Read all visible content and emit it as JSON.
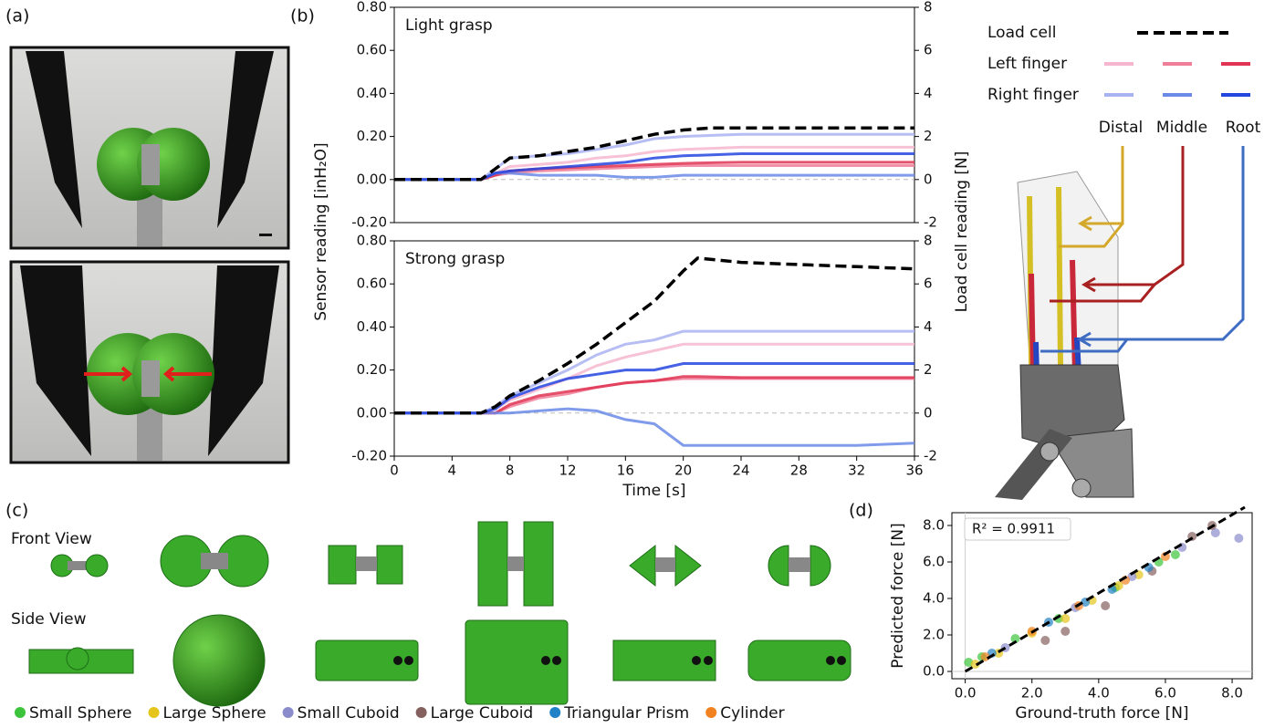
{
  "panel_labels": [
    "(a)",
    "(b)",
    "(c)",
    "(d)"
  ],
  "legend": {
    "rows": [
      "Load cell",
      "Left finger",
      "Right finger"
    ],
    "columns": [
      "Distal",
      "Middle",
      "Root"
    ]
  },
  "views": [
    "Front View",
    "Side View"
  ],
  "chart_data": [
    {
      "type": "line",
      "title": "Light grasp",
      "ylabel": "Sensor reading [inH₂O]",
      "y2label": "Load cell reading [N]",
      "x": [
        0,
        4,
        6,
        7,
        8,
        10,
        12,
        14,
        16,
        18,
        20,
        22,
        24,
        28,
        32,
        36
      ],
      "xlim": [
        0,
        36
      ],
      "ylim": [
        -0.2,
        0.8
      ],
      "yticks": [
        {
          "value": -0.2,
          "label": "-0.20"
        },
        {
          "value": 0,
          "label": "0.00"
        },
        {
          "value": 0.2,
          "label": "0.20"
        },
        {
          "value": 0.4,
          "label": "0.40"
        },
        {
          "value": 0.6,
          "label": "0.60"
        },
        {
          "value": 0.8,
          "label": "0.80"
        }
      ],
      "y2lim": [
        -2,
        8
      ],
      "y2ticks": [
        -2,
        0,
        2,
        4,
        6,
        8
      ],
      "series": [
        {
          "color": "#000000",
          "dash": true,
          "axis": "y2",
          "values": [
            0,
            0,
            0,
            0.5,
            1.0,
            1.1,
            1.3,
            1.5,
            1.8,
            2.1,
            2.3,
            2.4,
            2.4,
            2.4,
            2.4,
            2.4
          ]
        },
        {
          "color": "#f6b6cf",
          "values": [
            0,
            0,
            0,
            0.03,
            0.06,
            0.07,
            0.08,
            0.1,
            0.11,
            0.13,
            0.14,
            0.145,
            0.15,
            0.15,
            0.15,
            0.15
          ]
        },
        {
          "color": "#ef7f99",
          "values": [
            0,
            0,
            0,
            0.02,
            0.03,
            0.04,
            0.045,
            0.05,
            0.055,
            0.06,
            0.065,
            0.065,
            0.065,
            0.065,
            0.065,
            0.065
          ]
        },
        {
          "color": "#e03452",
          "values": [
            0,
            0,
            0,
            0.02,
            0.04,
            0.05,
            0.055,
            0.06,
            0.065,
            0.07,
            0.075,
            0.078,
            0.08,
            0.08,
            0.08,
            0.08
          ]
        },
        {
          "color": "#a9b3f2",
          "values": [
            0,
            0,
            0,
            0.05,
            0.1,
            0.11,
            0.12,
            0.14,
            0.16,
            0.19,
            0.2,
            0.205,
            0.21,
            0.21,
            0.21,
            0.21
          ]
        },
        {
          "color": "#6b8ae8",
          "values": [
            0,
            0,
            0,
            0.03,
            0.03,
            0.02,
            0.02,
            0.02,
            0.01,
            0.01,
            0.02,
            0.02,
            0.02,
            0.02,
            0.02,
            0.02
          ]
        },
        {
          "color": "#2446e0",
          "values": [
            0,
            0,
            0,
            0.03,
            0.04,
            0.05,
            0.06,
            0.07,
            0.08,
            0.1,
            0.11,
            0.115,
            0.12,
            0.12,
            0.12,
            0.12
          ]
        }
      ]
    },
    {
      "type": "line",
      "title": "Strong grasp",
      "xlabel": "Time [s]",
      "x": [
        0,
        4,
        6,
        7,
        8,
        10,
        12,
        14,
        16,
        18,
        20,
        21,
        24,
        28,
        32,
        36
      ],
      "xlim": [
        0,
        36
      ],
      "xticks": [
        0,
        4,
        8,
        12,
        16,
        20,
        24,
        28,
        32,
        36
      ],
      "ylim": [
        -0.2,
        0.8
      ],
      "yticks": [
        {
          "value": -0.2,
          "label": "-0.20"
        },
        {
          "value": 0,
          "label": "0.00"
        },
        {
          "value": 0.2,
          "label": "0.20"
        },
        {
          "value": 0.4,
          "label": "0.40"
        },
        {
          "value": 0.6,
          "label": "0.60"
        },
        {
          "value": 0.8,
          "label": "0.80"
        }
      ],
      "y2lim": [
        -2,
        8
      ],
      "y2ticks": [
        -2,
        0,
        2,
        4,
        6,
        8
      ],
      "series": [
        {
          "color": "#000000",
          "dash": true,
          "axis": "y2",
          "values": [
            0,
            0,
            0,
            0.3,
            0.8,
            1.5,
            2.3,
            3.2,
            4.2,
            5.2,
            6.6,
            7.2,
            7.0,
            6.9,
            6.8,
            6.7
          ]
        },
        {
          "color": "#f6b6cf",
          "values": [
            0,
            0,
            0,
            0.02,
            0.06,
            0.11,
            0.16,
            0.22,
            0.26,
            0.29,
            0.32,
            0.32,
            0.32,
            0.32,
            0.32,
            0.32
          ]
        },
        {
          "color": "#ef7f99",
          "values": [
            0,
            0,
            0,
            0,
            0.03,
            0.07,
            0.09,
            0.12,
            0.14,
            0.15,
            0.16,
            0.16,
            0.16,
            0.16,
            0.16,
            0.16
          ]
        },
        {
          "color": "#e03452",
          "values": [
            0,
            0,
            0,
            0,
            0.04,
            0.08,
            0.1,
            0.12,
            0.14,
            0.15,
            0.17,
            0.17,
            0.165,
            0.165,
            0.165,
            0.165
          ]
        },
        {
          "color": "#a9b3f2",
          "values": [
            0,
            0,
            0,
            0.03,
            0.08,
            0.14,
            0.2,
            0.27,
            0.32,
            0.34,
            0.38,
            0.38,
            0.38,
            0.38,
            0.38,
            0.38
          ]
        },
        {
          "color": "#6b8ae8",
          "values": [
            0,
            0,
            0,
            0,
            0,
            0.01,
            0.02,
            0.01,
            -0.03,
            -0.05,
            -0.15,
            -0.15,
            -0.15,
            -0.15,
            -0.15,
            -0.14
          ]
        },
        {
          "color": "#2446e0",
          "values": [
            0,
            0,
            0,
            0.02,
            0.07,
            0.12,
            0.16,
            0.18,
            0.2,
            0.2,
            0.23,
            0.23,
            0.23,
            0.23,
            0.23,
            0.23
          ]
        }
      ]
    },
    {
      "type": "scatter",
      "xlabel": "Ground-truth force [N]",
      "ylabel": "Predicted force [N]",
      "annotation": "R² = 0.9911",
      "xlim": [
        -0.4,
        8.6
      ],
      "ylim": [
        -0.4,
        8.7
      ],
      "xticks": [
        {
          "value": 0,
          "label": "0.0"
        },
        {
          "value": 2,
          "label": "2.0"
        },
        {
          "value": 4,
          "label": "4.0"
        },
        {
          "value": 6,
          "label": "6.0"
        },
        {
          "value": 8,
          "label": "8.0"
        }
      ],
      "yticks": [
        {
          "value": 0,
          "label": "0.0"
        },
        {
          "value": 2,
          "label": "2.0"
        },
        {
          "value": 4,
          "label": "4.0"
        },
        {
          "value": 6,
          "label": "6.0"
        },
        {
          "value": 8,
          "label": "8.0"
        }
      ],
      "series": [
        {
          "name": "Small Sphere",
          "color": "#3cc43c",
          "x": [
            0.1,
            0.5,
            1.5,
            2.8,
            4.5,
            5.8,
            6.3
          ],
          "values": [
            0.5,
            0.8,
            1.8,
            2.9,
            4.6,
            6.0,
            6.4
          ]
        },
        {
          "name": "Large Sphere",
          "color": "#e5c51a",
          "x": [
            0.3,
            1.0,
            2.0,
            3.0,
            3.8,
            4.6,
            5.2
          ],
          "values": [
            0.4,
            1.0,
            2.1,
            2.9,
            3.9,
            4.7,
            5.3
          ]
        },
        {
          "name": "Small Cuboid",
          "color": "#8a8ccc",
          "x": [
            1.2,
            3.3,
            5.0,
            6.5,
            7.5,
            8.2
          ],
          "values": [
            1.3,
            3.5,
            5.2,
            6.8,
            7.6,
            7.3
          ]
        },
        {
          "name": "Large Cuboid",
          "color": "#84605e",
          "x": [
            2.4,
            3.0,
            4.2,
            5.6,
            6.8,
            7.4
          ],
          "values": [
            1.7,
            2.2,
            3.6,
            5.5,
            7.4,
            8.0
          ]
        },
        {
          "name": "Triangular Prism",
          "color": "#2181c6",
          "x": [
            0.8,
            2.5,
            3.6,
            4.4,
            5.5
          ],
          "values": [
            1.0,
            2.7,
            3.8,
            4.5,
            5.7
          ]
        },
        {
          "name": "Cylinder",
          "color": "#f28220",
          "x": [
            0.6,
            2.0,
            3.4,
            4.8,
            6.0
          ],
          "values": [
            0.8,
            2.2,
            3.6,
            5.0,
            6.3
          ]
        }
      ]
    }
  ]
}
